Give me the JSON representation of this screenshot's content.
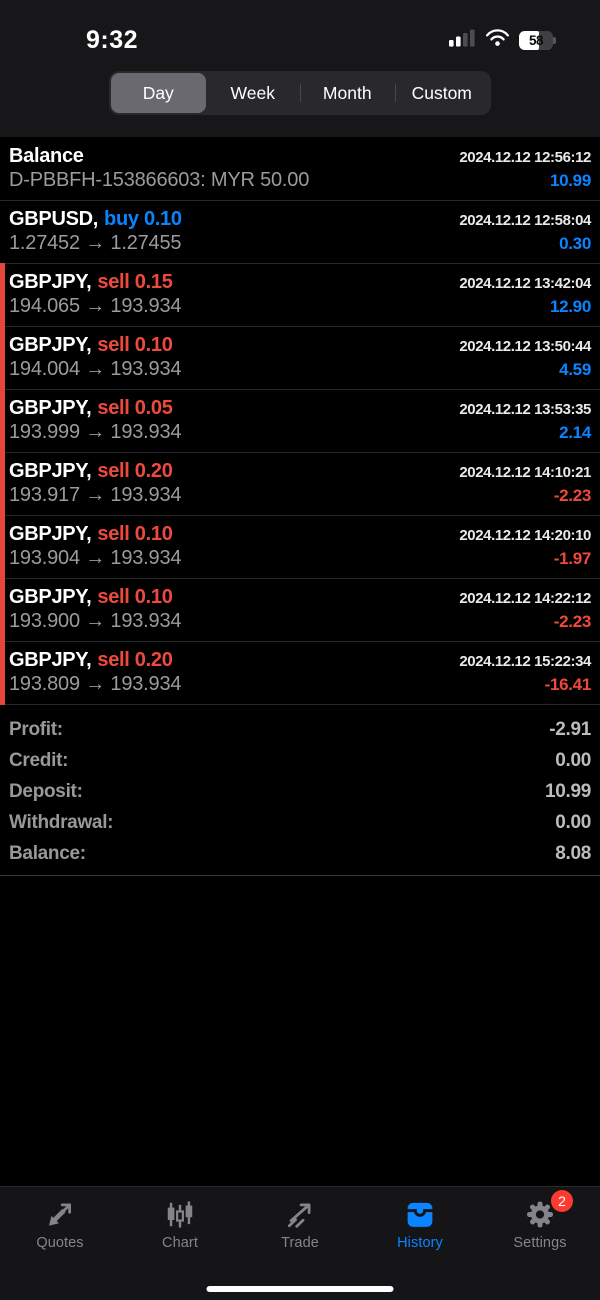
{
  "colors": {
    "accent_blue": "#0a84ff",
    "accent_red": "#ed4a3c",
    "stripe_red": "#e5463c",
    "badge_red": "#fd3b30"
  },
  "status_bar": {
    "time": "9:32",
    "battery_percent": "58"
  },
  "filter": {
    "options": [
      "Day",
      "Week",
      "Month",
      "Custom"
    ],
    "selected": "Day"
  },
  "history": {
    "rows": [
      {
        "symbol": "Balance",
        "side": "",
        "side_type": "",
        "datetime": "2024.12.12 12:56:12",
        "detail": "D-PBBFH-153866603: MYR 50.00",
        "amount": "10.99",
        "stripe": false
      },
      {
        "symbol": "GBPUSD,",
        "side": "buy 0.10",
        "side_type": "buy",
        "datetime": "2024.12.12 12:58:04",
        "detail": "1.27452 → 1.27455",
        "amount": "0.30",
        "stripe": false
      },
      {
        "symbol": "GBPJPY,",
        "side": "sell 0.15",
        "side_type": "sell",
        "datetime": "2024.12.12 13:42:04",
        "detail": "194.065 → 193.934",
        "amount": "12.90",
        "stripe": true
      },
      {
        "symbol": "GBPJPY,",
        "side": "sell 0.10",
        "side_type": "sell",
        "datetime": "2024.12.12 13:50:44",
        "detail": "194.004 → 193.934",
        "amount": "4.59",
        "stripe": true
      },
      {
        "symbol": "GBPJPY,",
        "side": "sell 0.05",
        "side_type": "sell",
        "datetime": "2024.12.12 13:53:35",
        "detail": "193.999 → 193.934",
        "amount": "2.14",
        "stripe": true
      },
      {
        "symbol": "GBPJPY,",
        "side": "sell 0.20",
        "side_type": "sell",
        "datetime": "2024.12.12 14:10:21",
        "detail": "193.917 → 193.934",
        "amount": "-2.23",
        "stripe": true
      },
      {
        "symbol": "GBPJPY,",
        "side": "sell 0.10",
        "side_type": "sell",
        "datetime": "2024.12.12 14:20:10",
        "detail": "193.904 → 193.934",
        "amount": "-1.97",
        "stripe": true
      },
      {
        "symbol": "GBPJPY,",
        "side": "sell 0.10",
        "side_type": "sell",
        "datetime": "2024.12.12 14:22:12",
        "detail": "193.900 → 193.934",
        "amount": "-2.23",
        "stripe": true
      },
      {
        "symbol": "GBPJPY,",
        "side": "sell 0.20",
        "side_type": "sell",
        "datetime": "2024.12.12 15:22:34",
        "detail": "193.809 → 193.934",
        "amount": "-16.41",
        "stripe": true
      }
    ]
  },
  "summary": {
    "rows": [
      {
        "label": "Profit:",
        "value": "-2.91"
      },
      {
        "label": "Credit:",
        "value": "0.00"
      },
      {
        "label": "Deposit:",
        "value": "10.99"
      },
      {
        "label": "Withdrawal:",
        "value": "0.00"
      },
      {
        "label": "Balance:",
        "value": "8.08"
      }
    ]
  },
  "tab_bar": {
    "items": [
      {
        "label": "Quotes",
        "icon": "quotes-arrows-icon",
        "active": false,
        "badge": ""
      },
      {
        "label": "Chart",
        "icon": "candlestick-chart-icon",
        "active": false,
        "badge": ""
      },
      {
        "label": "Trade",
        "icon": "trade-arrow-icon",
        "active": false,
        "badge": ""
      },
      {
        "label": "History",
        "icon": "history-tray-icon",
        "active": true,
        "badge": ""
      },
      {
        "label": "Settings",
        "icon": "gear-icon",
        "active": false,
        "badge": "2"
      }
    ]
  }
}
